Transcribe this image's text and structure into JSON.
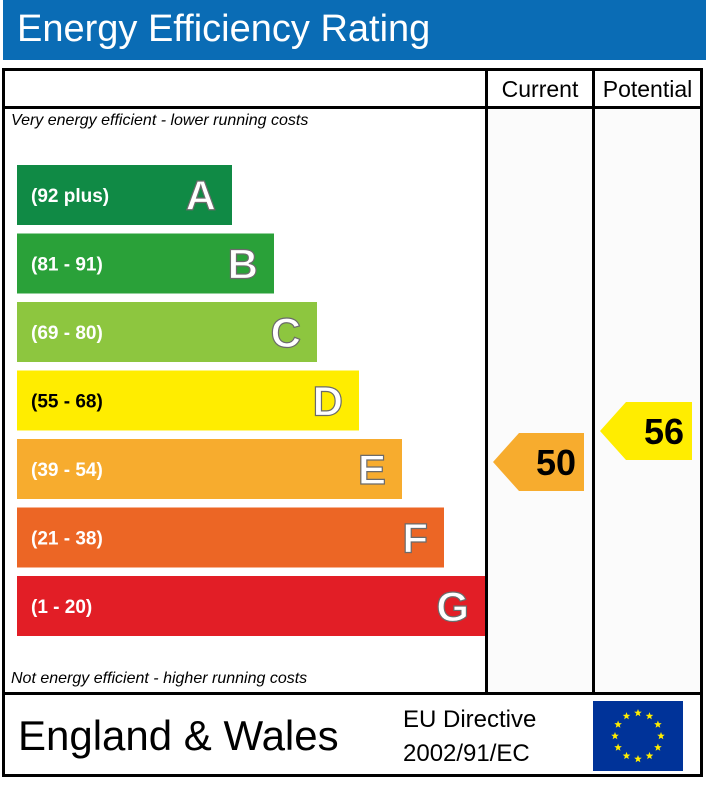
{
  "header": {
    "title": "Energy Efficiency Rating"
  },
  "columns": {
    "current": "Current",
    "potential": "Potential"
  },
  "notes": {
    "top": "Very energy efficient - lower running costs",
    "bottom": "Not energy efficient - higher running costs"
  },
  "chart_data": {
    "type": "bar",
    "title": "Energy Efficiency Rating",
    "bands": [
      {
        "letter": "A",
        "range": "(92 plus)",
        "color": "#108a45"
      },
      {
        "letter": "B",
        "range": "(81 - 91)",
        "color": "#2aa139"
      },
      {
        "letter": "C",
        "range": "(69 - 80)",
        "color": "#8dc63f"
      },
      {
        "letter": "D",
        "range": "(55 - 68)",
        "color": "#ffed00"
      },
      {
        "letter": "E",
        "range": "(39 - 54)",
        "color": "#f7ac2e"
      },
      {
        "letter": "F",
        "range": "(21 - 38)",
        "color": "#ec6625"
      },
      {
        "letter": "G",
        "range": "(1 - 20)",
        "color": "#e21e26"
      }
    ],
    "current": {
      "value": 50,
      "band": "E",
      "color": "#f7ac2e"
    },
    "potential": {
      "value": 56,
      "band": "D",
      "color": "#ffed00"
    }
  },
  "footer": {
    "region": "England & Wales",
    "directive_line1": "EU Directive",
    "directive_line2": "2002/91/EC",
    "flag_color": "#003399",
    "star_color": "#ffed00"
  },
  "colors": {
    "header_bg": "#0a6cb5",
    "header_text": "#ffffff"
  }
}
